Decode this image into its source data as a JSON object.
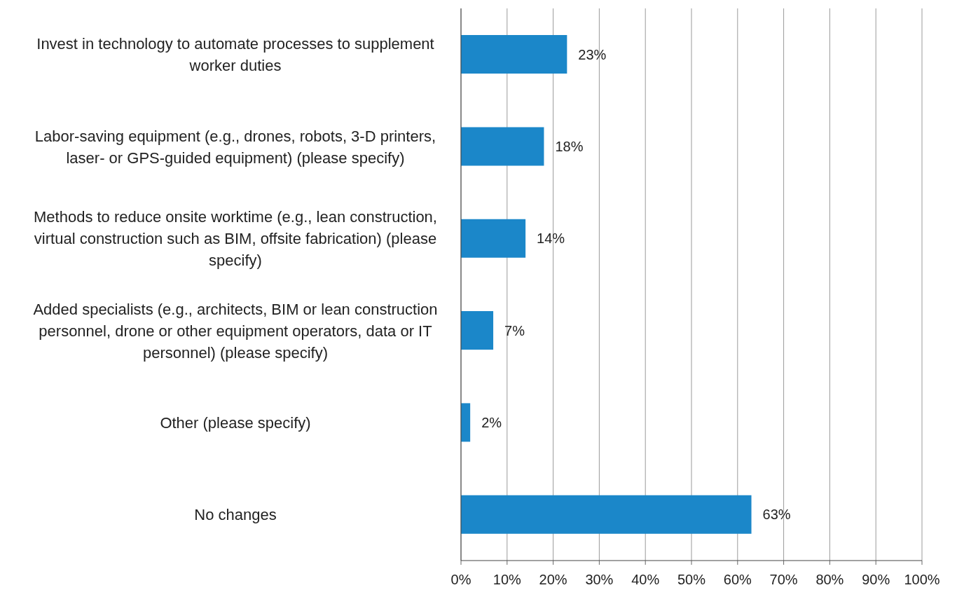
{
  "chart_data": {
    "type": "bar",
    "orientation": "horizontal",
    "categories": [
      "Invest in technology to automate processes to supplement worker duties",
      "Labor-saving equipment (e.g., drones, robots, 3-D printers, laser- or GPS-guided equipment) (please specify)",
      "Methods to reduce onsite worktime (e.g., lean construction, virtual construction such as BIM, offsite fabrication) (please specify)",
      "Added specialists (e.g., architects, BIM or lean construction personnel, drone or other equipment operators, data or IT personnel) (please specify)",
      "Other (please specify)",
      "No changes"
    ],
    "values": [
      23,
      18,
      14,
      7,
      2,
      63
    ],
    "color": "#1b87c9",
    "value_labels": [
      "23%",
      "18%",
      "14%",
      "7%",
      "2%",
      "63%"
    ],
    "xlim": [
      0,
      100
    ],
    "xticks": [
      {
        "value": 0,
        "label": "0%"
      },
      {
        "value": 10,
        "label": "10%"
      },
      {
        "value": 20,
        "label": "20%"
      },
      {
        "value": 30,
        "label": "30%"
      },
      {
        "value": 40,
        "label": "40%"
      },
      {
        "value": 50,
        "label": "50%"
      },
      {
        "value": 60,
        "label": "60%"
      },
      {
        "value": 70,
        "label": "70%"
      },
      {
        "value": 80,
        "label": "80%"
      },
      {
        "value": 90,
        "label": "90%"
      },
      {
        "value": 100,
        "label": "100%"
      }
    ],
    "grid": "x"
  }
}
